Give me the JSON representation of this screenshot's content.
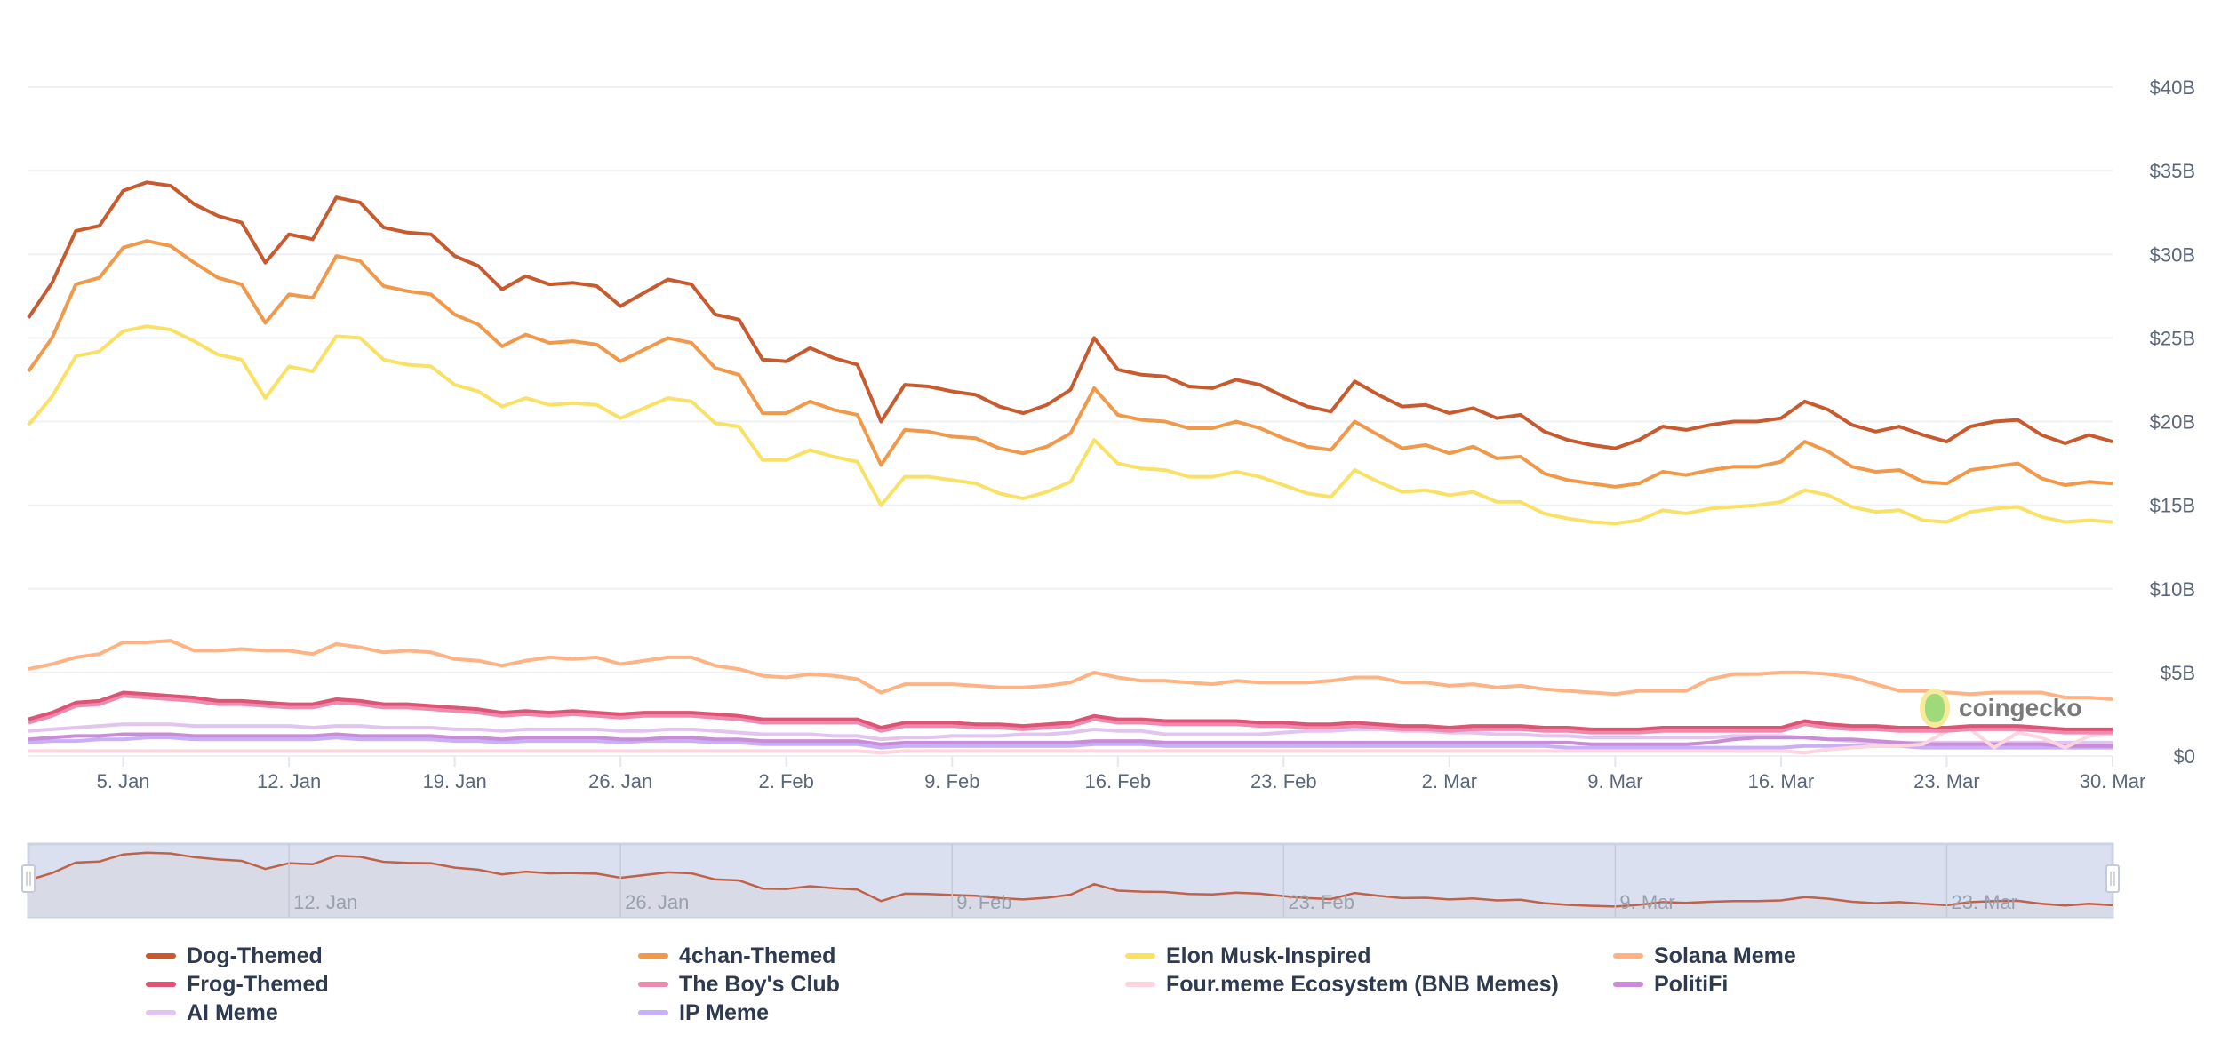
{
  "chart_data": {
    "type": "line",
    "title": "",
    "xlabel": "",
    "ylabel": "",
    "ylim": [
      0,
      40
    ],
    "y_ticks": [
      "$0",
      "$5B",
      "$10B",
      "$15B",
      "$20B",
      "$25B",
      "$30B",
      "$35B",
      "$40B"
    ],
    "x_ticks": [
      "5. Jan",
      "12. Jan",
      "19. Jan",
      "26. Jan",
      "2. Feb",
      "9. Feb",
      "16. Feb",
      "23. Feb",
      "2. Mar",
      "9. Mar",
      "16. Mar",
      "23. Mar",
      "30. Mar"
    ],
    "navigator_ticks": [
      "12. Jan",
      "26. Jan",
      "9. Feb",
      "23. Feb",
      "9. Mar",
      "23. Mar"
    ],
    "units": "USD billions (market cap)",
    "grid": true,
    "legend_position": "bottom",
    "x": [
      "1 Jan",
      "2 Jan",
      "3 Jan",
      "4 Jan",
      "5 Jan",
      "6 Jan",
      "7 Jan",
      "8 Jan",
      "9 Jan",
      "10 Jan",
      "11 Jan",
      "12 Jan",
      "13 Jan",
      "14 Jan",
      "15 Jan",
      "16 Jan",
      "17 Jan",
      "18 Jan",
      "19 Jan",
      "20 Jan",
      "21 Jan",
      "22 Jan",
      "23 Jan",
      "24 Jan",
      "25 Jan",
      "26 Jan",
      "27 Jan",
      "28 Jan",
      "29 Jan",
      "30 Jan",
      "31 Jan",
      "1 Feb",
      "2 Feb",
      "3 Feb",
      "4 Feb",
      "5 Feb",
      "6 Feb",
      "7 Feb",
      "8 Feb",
      "9 Feb",
      "10 Feb",
      "11 Feb",
      "12 Feb",
      "13 Feb",
      "14 Feb",
      "15 Feb",
      "16 Feb",
      "17 Feb",
      "18 Feb",
      "19 Feb",
      "20 Feb",
      "21 Feb",
      "22 Feb",
      "23 Feb",
      "24 Feb",
      "25 Feb",
      "26 Feb",
      "27 Feb",
      "28 Feb",
      "1 Mar",
      "2 Mar",
      "3 Mar",
      "4 Mar",
      "5 Mar",
      "6 Mar",
      "7 Mar",
      "8 Mar",
      "9 Mar",
      "10 Mar",
      "11 Mar",
      "12 Mar",
      "13 Mar",
      "14 Mar",
      "15 Mar",
      "16 Mar",
      "17 Mar",
      "18 Mar",
      "19 Mar",
      "20 Mar",
      "21 Mar",
      "22 Mar",
      "23 Mar",
      "24 Mar",
      "25 Mar",
      "26 Mar",
      "27 Mar",
      "28 Mar",
      "29 Mar",
      "30 Mar"
    ],
    "series": [
      {
        "name": "Dog-Themed",
        "color": "#c75a2e",
        "values": [
          26.2,
          28.3,
          31.4,
          31.7,
          33.8,
          34.3,
          34.1,
          33.0,
          32.3,
          31.9,
          29.5,
          31.2,
          30.9,
          33.4,
          33.1,
          31.6,
          31.3,
          31.2,
          29.9,
          29.3,
          27.9,
          28.7,
          28.2,
          28.3,
          28.1,
          26.9,
          27.7,
          28.5,
          28.2,
          26.4,
          26.1,
          23.7,
          23.6,
          24.4,
          23.8,
          23.4,
          20.0,
          22.2,
          22.1,
          21.8,
          21.6,
          20.9,
          20.5,
          21.0,
          21.9,
          25.0,
          23.1,
          22.8,
          22.7,
          22.1,
          22.0,
          22.5,
          22.2,
          21.5,
          20.9,
          20.6,
          22.4,
          21.6,
          20.9,
          21.0,
          20.5,
          20.8,
          20.2,
          20.4,
          19.4,
          18.9,
          18.6,
          18.4,
          18.9,
          19.7,
          19.5,
          19.8,
          20.0,
          20.0,
          20.2,
          21.2,
          20.7,
          19.8,
          19.4,
          19.7,
          19.2,
          18.8,
          19.7,
          20.0,
          20.1,
          19.2,
          18.7,
          19.2,
          18.8
        ]
      },
      {
        "name": "4chan-Themed",
        "color": "#f0994a",
        "values": [
          23.0,
          25.0,
          28.2,
          28.6,
          30.4,
          30.8,
          30.5,
          29.5,
          28.6,
          28.2,
          25.9,
          27.6,
          27.4,
          29.9,
          29.6,
          28.1,
          27.8,
          27.6,
          26.4,
          25.8,
          24.5,
          25.2,
          24.7,
          24.8,
          24.6,
          23.6,
          24.3,
          25.0,
          24.7,
          23.2,
          22.8,
          20.5,
          20.5,
          21.2,
          20.7,
          20.4,
          17.4,
          19.5,
          19.4,
          19.1,
          19.0,
          18.4,
          18.1,
          18.5,
          19.3,
          22.0,
          20.4,
          20.1,
          20.0,
          19.6,
          19.6,
          20.0,
          19.6,
          19.0,
          18.5,
          18.3,
          20.0,
          19.2,
          18.4,
          18.6,
          18.1,
          18.5,
          17.8,
          17.9,
          16.9,
          16.5,
          16.3,
          16.1,
          16.3,
          17.0,
          16.8,
          17.1,
          17.3,
          17.3,
          17.6,
          18.8,
          18.2,
          17.3,
          17.0,
          17.1,
          16.4,
          16.3,
          17.1,
          17.3,
          17.5,
          16.6,
          16.2,
          16.4,
          16.3
        ]
      },
      {
        "name": "Elon Musk-Inspired",
        "color": "#f9e166",
        "values": [
          19.8,
          21.5,
          23.9,
          24.2,
          25.4,
          25.7,
          25.5,
          24.8,
          24.0,
          23.7,
          21.4,
          23.3,
          23.0,
          25.1,
          25.0,
          23.7,
          23.4,
          23.3,
          22.2,
          21.8,
          20.9,
          21.4,
          21.0,
          21.1,
          21.0,
          20.2,
          20.8,
          21.4,
          21.2,
          19.9,
          19.7,
          17.7,
          17.7,
          18.3,
          17.9,
          17.6,
          15.0,
          16.7,
          16.7,
          16.5,
          16.3,
          15.7,
          15.4,
          15.8,
          16.4,
          18.9,
          17.5,
          17.2,
          17.1,
          16.7,
          16.7,
          17.0,
          16.7,
          16.2,
          15.7,
          15.5,
          17.1,
          16.4,
          15.8,
          15.9,
          15.6,
          15.8,
          15.2,
          15.2,
          14.5,
          14.2,
          14.0,
          13.9,
          14.1,
          14.7,
          14.5,
          14.8,
          14.9,
          15.0,
          15.2,
          15.9,
          15.6,
          14.9,
          14.6,
          14.7,
          14.1,
          14.0,
          14.6,
          14.8,
          14.9,
          14.3,
          14.0,
          14.1,
          14.0
        ]
      },
      {
        "name": "Solana Meme",
        "color": "#fdb383",
        "values": [
          5.2,
          5.5,
          5.9,
          6.1,
          6.8,
          6.8,
          6.9,
          6.3,
          6.3,
          6.4,
          6.3,
          6.3,
          6.1,
          6.7,
          6.5,
          6.2,
          6.3,
          6.2,
          5.8,
          5.7,
          5.4,
          5.7,
          5.9,
          5.8,
          5.9,
          5.5,
          5.7,
          5.9,
          5.9,
          5.4,
          5.2,
          4.8,
          4.7,
          4.9,
          4.8,
          4.6,
          3.8,
          4.3,
          4.3,
          4.3,
          4.2,
          4.1,
          4.1,
          4.2,
          4.4,
          5.0,
          4.7,
          4.5,
          4.5,
          4.4,
          4.3,
          4.5,
          4.4,
          4.4,
          4.4,
          4.5,
          4.7,
          4.7,
          4.4,
          4.4,
          4.2,
          4.3,
          4.1,
          4.2,
          4.0,
          3.9,
          3.8,
          3.7,
          3.9,
          3.9,
          3.9,
          4.6,
          4.9,
          4.9,
          5.0,
          5.0,
          4.9,
          4.7,
          4.3,
          3.9,
          3.9,
          3.8,
          3.7,
          3.8,
          3.8,
          3.8,
          3.5,
          3.5,
          3.4
        ]
      },
      {
        "name": "Frog-Themed",
        "color": "#dc5577",
        "values": [
          2.2,
          2.6,
          3.2,
          3.3,
          3.8,
          3.7,
          3.6,
          3.5,
          3.3,
          3.3,
          3.2,
          3.1,
          3.1,
          3.4,
          3.3,
          3.1,
          3.1,
          3.0,
          2.9,
          2.8,
          2.6,
          2.7,
          2.6,
          2.7,
          2.6,
          2.5,
          2.6,
          2.6,
          2.6,
          2.5,
          2.4,
          2.2,
          2.2,
          2.2,
          2.2,
          2.2,
          1.7,
          2.0,
          2.0,
          2.0,
          1.9,
          1.9,
          1.8,
          1.9,
          2.0,
          2.4,
          2.2,
          2.2,
          2.1,
          2.1,
          2.1,
          2.1,
          2.0,
          2.0,
          1.9,
          1.9,
          2.0,
          1.9,
          1.8,
          1.8,
          1.7,
          1.8,
          1.8,
          1.8,
          1.7,
          1.7,
          1.6,
          1.6,
          1.6,
          1.7,
          1.7,
          1.7,
          1.7,
          1.7,
          1.7,
          2.1,
          1.9,
          1.8,
          1.8,
          1.7,
          1.7,
          1.7,
          1.8,
          1.8,
          1.8,
          1.7,
          1.6,
          1.6,
          1.6
        ]
      },
      {
        "name": "The Boy's Club",
        "color": "#ee8aae",
        "values": [
          2.0,
          2.4,
          3.0,
          3.1,
          3.6,
          3.5,
          3.4,
          3.3,
          3.1,
          3.1,
          3.0,
          2.9,
          2.9,
          3.2,
          3.1,
          2.9,
          2.9,
          2.8,
          2.7,
          2.6,
          2.4,
          2.5,
          2.4,
          2.5,
          2.4,
          2.3,
          2.4,
          2.4,
          2.4,
          2.3,
          2.2,
          2.0,
          2.0,
          2.0,
          2.0,
          2.0,
          1.5,
          1.8,
          1.8,
          1.8,
          1.7,
          1.7,
          1.6,
          1.7,
          1.8,
          2.2,
          2.0,
          2.0,
          1.9,
          1.9,
          1.9,
          1.9,
          1.8,
          1.8,
          1.7,
          1.7,
          1.8,
          1.7,
          1.6,
          1.6,
          1.5,
          1.6,
          1.6,
          1.6,
          1.5,
          1.5,
          1.4,
          1.4,
          1.4,
          1.5,
          1.5,
          1.5,
          1.5,
          1.5,
          1.5,
          1.9,
          1.7,
          1.6,
          1.6,
          1.5,
          1.5,
          1.5,
          1.6,
          1.6,
          1.6,
          1.5,
          1.4,
          1.4,
          1.4
        ]
      },
      {
        "name": "Four.meme Ecosystem (BNB Memes)",
        "color": "#fcd5de",
        "values": [
          0.3,
          0.3,
          0.3,
          0.3,
          0.3,
          0.3,
          0.3,
          0.3,
          0.3,
          0.3,
          0.3,
          0.3,
          0.3,
          0.3,
          0.3,
          0.3,
          0.3,
          0.3,
          0.3,
          0.3,
          0.3,
          0.3,
          0.3,
          0.3,
          0.3,
          0.3,
          0.3,
          0.3,
          0.3,
          0.3,
          0.3,
          0.3,
          0.3,
          0.3,
          0.3,
          0.3,
          0.2,
          0.3,
          0.3,
          0.3,
          0.3,
          0.3,
          0.3,
          0.3,
          0.3,
          0.3,
          0.3,
          0.3,
          0.3,
          0.3,
          0.3,
          0.3,
          0.3,
          0.3,
          0.3,
          0.3,
          0.3,
          0.3,
          0.3,
          0.3,
          0.3,
          0.3,
          0.3,
          0.3,
          0.3,
          0.3,
          0.3,
          0.3,
          0.3,
          0.3,
          0.3,
          0.3,
          0.3,
          0.3,
          0.3,
          0.2,
          0.4,
          0.5,
          0.6,
          0.6,
          0.7,
          1.5,
          1.6,
          0.5,
          1.4,
          1.1,
          0.5,
          1.2,
          1.3
        ]
      },
      {
        "name": "PolitiFi",
        "color": "#c98dd8",
        "values": [
          1.0,
          1.1,
          1.2,
          1.2,
          1.3,
          1.3,
          1.3,
          1.2,
          1.2,
          1.2,
          1.2,
          1.2,
          1.2,
          1.3,
          1.2,
          1.2,
          1.2,
          1.2,
          1.1,
          1.1,
          1.0,
          1.1,
          1.1,
          1.1,
          1.1,
          1.0,
          1.0,
          1.1,
          1.1,
          1.0,
          1.0,
          0.9,
          0.9,
          0.9,
          0.9,
          0.9,
          0.7,
          0.8,
          0.8,
          0.8,
          0.8,
          0.8,
          0.8,
          0.8,
          0.8,
          0.9,
          0.9,
          0.9,
          0.8,
          0.8,
          0.8,
          0.8,
          0.8,
          0.8,
          0.8,
          0.8,
          0.8,
          0.8,
          0.8,
          0.8,
          0.8,
          0.8,
          0.8,
          0.8,
          0.8,
          0.8,
          0.7,
          0.7,
          0.7,
          0.7,
          0.7,
          0.8,
          1.0,
          1.1,
          1.1,
          1.1,
          1.0,
          1.0,
          0.9,
          0.8,
          0.7,
          0.7,
          0.7,
          0.7,
          0.7,
          0.7,
          0.6,
          0.6,
          0.6
        ]
      },
      {
        "name": "AI Meme",
        "color": "#e2c4f0",
        "values": [
          1.5,
          1.6,
          1.7,
          1.8,
          1.9,
          1.9,
          1.9,
          1.8,
          1.8,
          1.8,
          1.8,
          1.8,
          1.7,
          1.8,
          1.8,
          1.7,
          1.7,
          1.7,
          1.6,
          1.6,
          1.5,
          1.6,
          1.6,
          1.6,
          1.6,
          1.5,
          1.5,
          1.6,
          1.6,
          1.5,
          1.4,
          1.3,
          1.3,
          1.3,
          1.2,
          1.2,
          1.0,
          1.1,
          1.1,
          1.2,
          1.2,
          1.2,
          1.3,
          1.3,
          1.4,
          1.6,
          1.5,
          1.5,
          1.3,
          1.3,
          1.3,
          1.3,
          1.3,
          1.4,
          1.5,
          1.5,
          1.6,
          1.6,
          1.5,
          1.5,
          1.4,
          1.4,
          1.3,
          1.3,
          1.2,
          1.2,
          1.1,
          1.1,
          1.1,
          1.1,
          1.1,
          1.1,
          1.2,
          1.2,
          1.2,
          1.1,
          1.0,
          0.9,
          0.8,
          0.8,
          0.8,
          0.8,
          0.8,
          0.8,
          0.8,
          0.8,
          0.8,
          0.8,
          0.8
        ]
      },
      {
        "name": "IP Meme",
        "color": "#c9aef8",
        "values": [
          0.8,
          0.9,
          0.9,
          1.0,
          1.0,
          1.1,
          1.1,
          1.0,
          1.0,
          1.0,
          1.0,
          1.0,
          1.0,
          1.1,
          1.0,
          1.0,
          1.0,
          1.0,
          0.9,
          0.9,
          0.8,
          0.9,
          0.9,
          0.9,
          0.9,
          0.8,
          0.9,
          0.9,
          0.9,
          0.8,
          0.8,
          0.7,
          0.7,
          0.7,
          0.7,
          0.7,
          0.5,
          0.6,
          0.6,
          0.6,
          0.6,
          0.6,
          0.6,
          0.6,
          0.6,
          0.7,
          0.7,
          0.7,
          0.6,
          0.6,
          0.6,
          0.6,
          0.6,
          0.6,
          0.6,
          0.6,
          0.6,
          0.6,
          0.6,
          0.6,
          0.6,
          0.6,
          0.6,
          0.6,
          0.6,
          0.5,
          0.5,
          0.5,
          0.5,
          0.5,
          0.5,
          0.5,
          0.5,
          0.5,
          0.5,
          0.6,
          0.6,
          0.6,
          0.6,
          0.6,
          0.5,
          0.5,
          0.5,
          0.5,
          0.5,
          0.5,
          0.5,
          0.5,
          0.5
        ]
      }
    ]
  },
  "watermark": {
    "text": "coingecko"
  }
}
